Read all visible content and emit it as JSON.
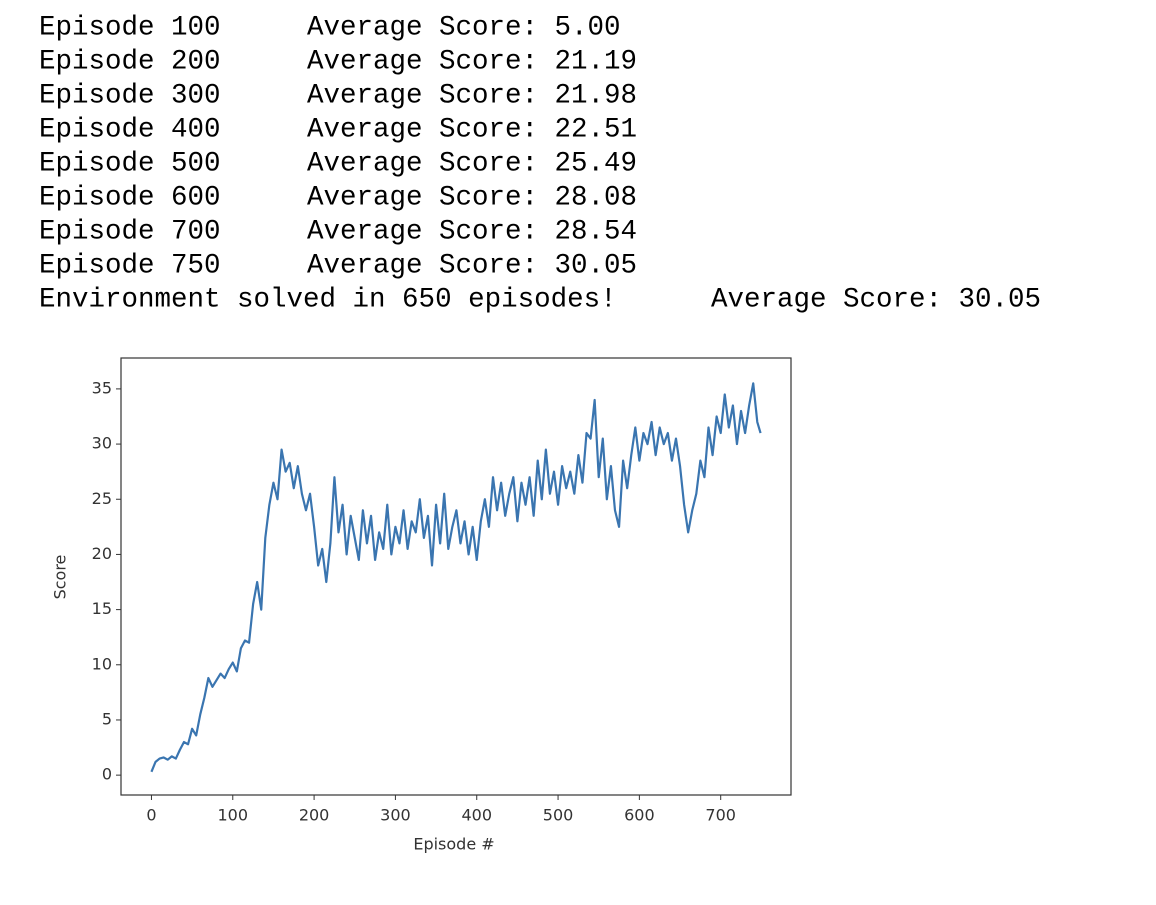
{
  "log": {
    "lines": [
      {
        "episode": "Episode 100",
        "score": "Average Score: 5.00"
      },
      {
        "episode": "Episode 200",
        "score": "Average Score: 21.19"
      },
      {
        "episode": "Episode 300",
        "score": "Average Score: 21.98"
      },
      {
        "episode": "Episode 400",
        "score": "Average Score: 22.51"
      },
      {
        "episode": "Episode 500",
        "score": "Average Score: 25.49"
      },
      {
        "episode": "Episode 600",
        "score": "Average Score: 28.08"
      },
      {
        "episode": "Episode 700",
        "score": "Average Score: 28.54"
      },
      {
        "episode": "Episode 750",
        "score": "Average Score: 30.05"
      }
    ],
    "solved": {
      "message": "Environment solved in 650 episodes!",
      "score": "Average Score: 30.05"
    }
  },
  "chart_data": {
    "type": "line",
    "xlabel": "Episode #",
    "ylabel": "Score",
    "color": "#3a75b0",
    "xlim": [
      -37.45,
      786.45
    ],
    "ylim": [
      -1.8,
      37.8
    ],
    "xticks": [
      0,
      100,
      200,
      300,
      400,
      500,
      600,
      700
    ],
    "yticks": [
      0,
      5,
      10,
      15,
      20,
      25,
      30,
      35
    ],
    "x": [
      0,
      5,
      10,
      15,
      20,
      25,
      30,
      35,
      40,
      45,
      50,
      55,
      60,
      65,
      70,
      75,
      80,
      85,
      90,
      95,
      100,
      105,
      110,
      115,
      120,
      125,
      130,
      135,
      140,
      145,
      150,
      155,
      160,
      165,
      170,
      175,
      180,
      185,
      190,
      195,
      200,
      205,
      210,
      215,
      220,
      225,
      230,
      235,
      240,
      245,
      250,
      255,
      260,
      265,
      270,
      275,
      280,
      285,
      290,
      295,
      300,
      305,
      310,
      315,
      320,
      325,
      330,
      335,
      340,
      345,
      350,
      355,
      360,
      365,
      370,
      375,
      380,
      385,
      390,
      395,
      400,
      405,
      410,
      415,
      420,
      425,
      430,
      435,
      440,
      445,
      450,
      455,
      460,
      465,
      470,
      475,
      480,
      485,
      490,
      495,
      500,
      505,
      510,
      515,
      520,
      525,
      530,
      535,
      540,
      545,
      550,
      555,
      560,
      565,
      570,
      575,
      580,
      585,
      590,
      595,
      600,
      605,
      610,
      615,
      620,
      625,
      630,
      635,
      640,
      645,
      650,
      655,
      660,
      665,
      670,
      675,
      680,
      685,
      690,
      695,
      700,
      705,
      710,
      715,
      720,
      725,
      730,
      735,
      740,
      745,
      749
    ],
    "values": [
      0.3,
      1.2,
      1.5,
      1.6,
      1.4,
      1.7,
      1.5,
      2.3,
      3.0,
      2.8,
      4.2,
      3.6,
      5.5,
      7.0,
      8.8,
      8.0,
      8.6,
      9.2,
      8.8,
      9.6,
      10.2,
      9.4,
      11.5,
      12.2,
      12.0,
      15.5,
      17.5,
      15.0,
      21.5,
      24.5,
      26.5,
      25.0,
      29.5,
      27.5,
      28.3,
      26.0,
      28.0,
      25.5,
      24.0,
      25.5,
      22.5,
      19.0,
      20.5,
      17.5,
      21.0,
      27.0,
      22.0,
      24.5,
      20.0,
      23.5,
      21.5,
      19.5,
      24.0,
      21.0,
      23.5,
      19.5,
      22.0,
      20.5,
      24.5,
      20.0,
      22.5,
      21.0,
      24.0,
      20.5,
      23.0,
      22.0,
      25.0,
      21.5,
      23.5,
      19.0,
      24.5,
      21.0,
      25.5,
      20.5,
      22.5,
      24.0,
      21.0,
      23.0,
      20.0,
      22.5,
      19.5,
      23.0,
      25.0,
      22.5,
      27.0,
      24.0,
      26.5,
      23.5,
      25.5,
      27.0,
      23.0,
      26.5,
      24.5,
      27.0,
      23.5,
      28.5,
      25.0,
      29.5,
      25.5,
      27.5,
      24.5,
      28.0,
      26.0,
      27.5,
      25.5,
      29.0,
      26.5,
      31.0,
      30.5,
      34.0,
      27.0,
      30.5,
      25.0,
      28.0,
      24.0,
      22.5,
      28.5,
      26.0,
      29.0,
      31.5,
      28.5,
      31.0,
      30.0,
      32.0,
      29.0,
      31.5,
      30.0,
      31.0,
      28.5,
      30.5,
      28.0,
      24.5,
      22.0,
      24.0,
      25.5,
      28.5,
      27.0,
      31.5,
      29.0,
      32.5,
      31.0,
      34.5,
      31.5,
      33.5,
      30.0,
      33.0,
      31.0,
      33.5,
      35.5,
      32.0,
      31.0
    ]
  }
}
